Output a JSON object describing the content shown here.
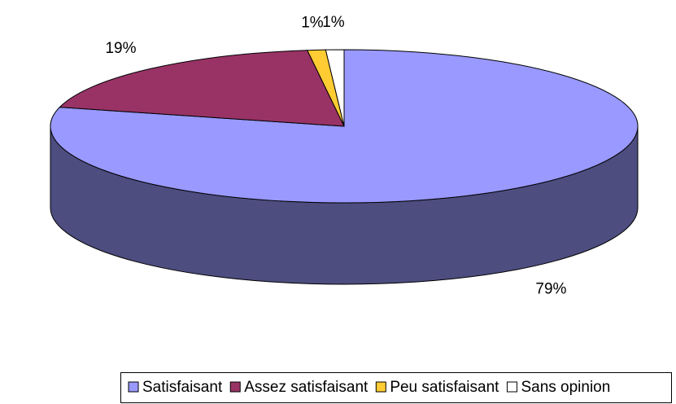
{
  "chart_data": {
    "type": "pie",
    "categories": [
      "Satisfaisant",
      "Assez satisfaisant",
      "Peu satisfaisant",
      "Sans opinion"
    ],
    "values": [
      79,
      19,
      1,
      1
    ],
    "value_labels": [
      "79%",
      "19%",
      "1%",
      "1%"
    ],
    "colors": [
      "#9999ff",
      "#993366",
      "#ffcc33",
      "#ffffff"
    ],
    "legend": "bottom"
  }
}
